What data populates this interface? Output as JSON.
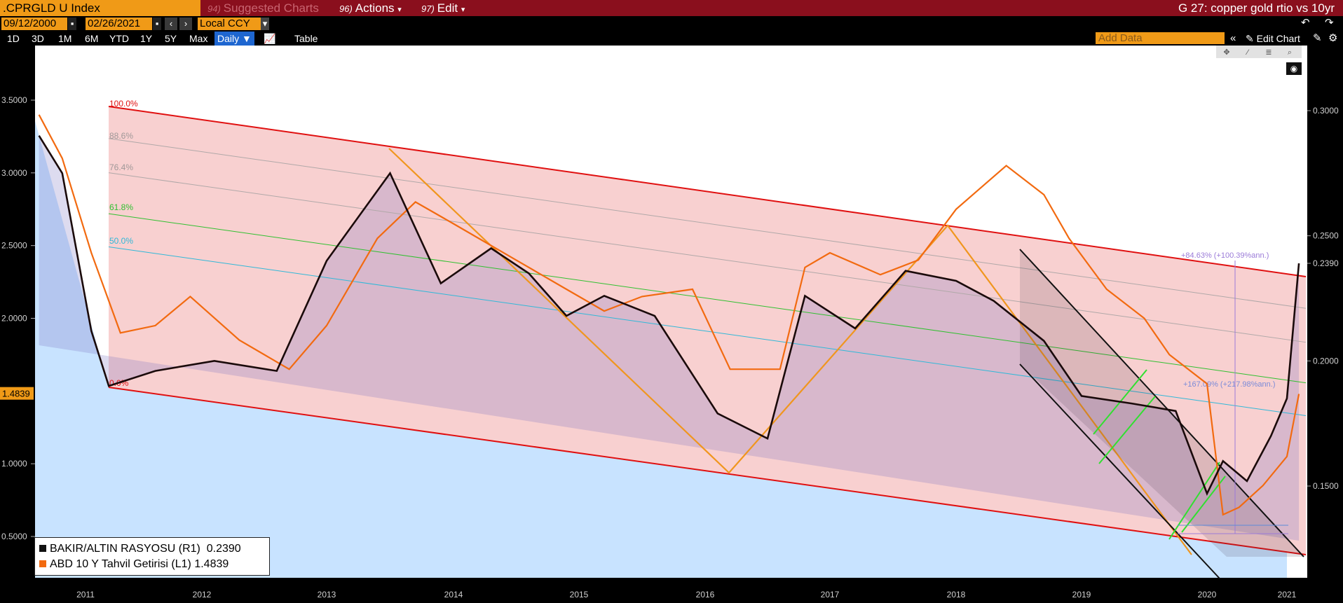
{
  "topbar": {
    "ticker": ".CPRGLD U Index",
    "suggested_num": "94)",
    "suggested": "Suggested Charts",
    "actions_num": "96)",
    "actions": "Actions",
    "edit_num": "97)",
    "edit": "Edit",
    "title": "G 27: copper gold rtio vs 10yr"
  },
  "toolbar": {
    "start_date": "09/12/2000",
    "end_date": "02/26/2021",
    "currency": "Local CCY",
    "ranges": [
      "1D",
      "3D",
      "1M",
      "6M",
      "YTD",
      "1Y",
      "5Y",
      "Max"
    ],
    "frequency": "Daily",
    "table": "Table",
    "add_data": "Add Data",
    "edit_chart": "Edit Chart"
  },
  "chart_data": {
    "type": "line",
    "x_ticks": [
      "2011",
      "2012",
      "2013",
      "2014",
      "2015",
      "2016",
      "2017",
      "2018",
      "2019",
      "2020",
      "2021"
    ],
    "left_axis": {
      "ticks": [
        "0.5000",
        "1.0000",
        "1.5000",
        "2.0000",
        "2.5000",
        "3.0000",
        "3.5000"
      ],
      "current": "1.4839",
      "range": [
        0.2,
        3.75
      ]
    },
    "right_axis": {
      "ticks": [
        "0.1500",
        "0.2000",
        "0.2390",
        "0.2500",
        "0.3000"
      ],
      "current": "0.2390"
    },
    "series": [
      {
        "name": "BAKIR/ALTIN RASYOSU (R1)",
        "last": "0.2390",
        "color": "#1a0a0a",
        "x": [
          2010.6,
          2010.8,
          2011.05,
          2011.2,
          2011.6,
          2012.1,
          2012.6,
          2013.0,
          2013.5,
          2013.9,
          2014.3,
          2014.6,
          2014.9,
          2015.2,
          2015.6,
          2016.1,
          2016.5,
          2016.8,
          2017.2,
          2017.6,
          2018.0,
          2018.3,
          2018.7,
          2019.0,
          2019.4,
          2019.75,
          2020.0,
          2020.2,
          2020.5,
          2020.8,
          2021.0,
          2021.15
        ],
        "y": [
          0.29,
          0.275,
          0.212,
          0.19,
          0.196,
          0.2,
          0.196,
          0.24,
          0.275,
          0.231,
          0.245,
          0.235,
          0.218,
          0.226,
          0.218,
          0.179,
          0.169,
          0.226,
          0.213,
          0.236,
          0.232,
          0.224,
          0.208,
          0.186,
          0.183,
          0.18,
          0.147,
          0.16,
          0.152,
          0.17,
          0.185,
          0.239
        ]
      },
      {
        "name": "ABD 10 Y Tahvil Getirisi (L1)",
        "last": "1.4839",
        "color": "#f26a10",
        "x": [
          2010.6,
          2010.8,
          2011.05,
          2011.3,
          2011.6,
          2011.9,
          2012.3,
          2012.7,
          2013.0,
          2013.4,
          2013.7,
          2014.0,
          2014.5,
          2014.9,
          2015.2,
          2015.5,
          2015.9,
          2016.2,
          2016.6,
          2016.8,
          2017.0,
          2017.4,
          2017.7,
          2018.0,
          2018.4,
          2018.7,
          2018.9,
          2019.2,
          2019.5,
          2019.7,
          2020.0,
          2020.2,
          2020.4,
          2020.7,
          2021.0,
          2021.15
        ],
        "y": [
          3.4,
          3.1,
          2.45,
          1.9,
          1.95,
          2.15,
          1.85,
          1.65,
          1.95,
          2.55,
          2.8,
          2.65,
          2.4,
          2.2,
          2.05,
          2.15,
          2.2,
          1.65,
          1.65,
          2.35,
          2.45,
          2.3,
          2.4,
          2.75,
          3.05,
          2.85,
          2.55,
          2.2,
          2.0,
          1.75,
          1.55,
          0.65,
          0.7,
          0.85,
          1.05,
          1.48
        ]
      }
    ],
    "fib_labels": [
      "100.0%",
      "88.6%",
      "76.4%",
      "61.8%",
      "50.0%",
      "0.0%"
    ],
    "annotations": [
      "+84.63% (+100.39%ann.)",
      "+167.09% (+217.98%ann.)"
    ],
    "colors": {
      "channel_fill": "#f8d0d0",
      "area_fill": "#c8e3ff",
      "channel_line": "#e01010",
      "fib_61": "#30c030",
      "fib_50": "#30b8d8",
      "zigzag": "#f0961e",
      "green_seg": "#30e030"
    }
  }
}
